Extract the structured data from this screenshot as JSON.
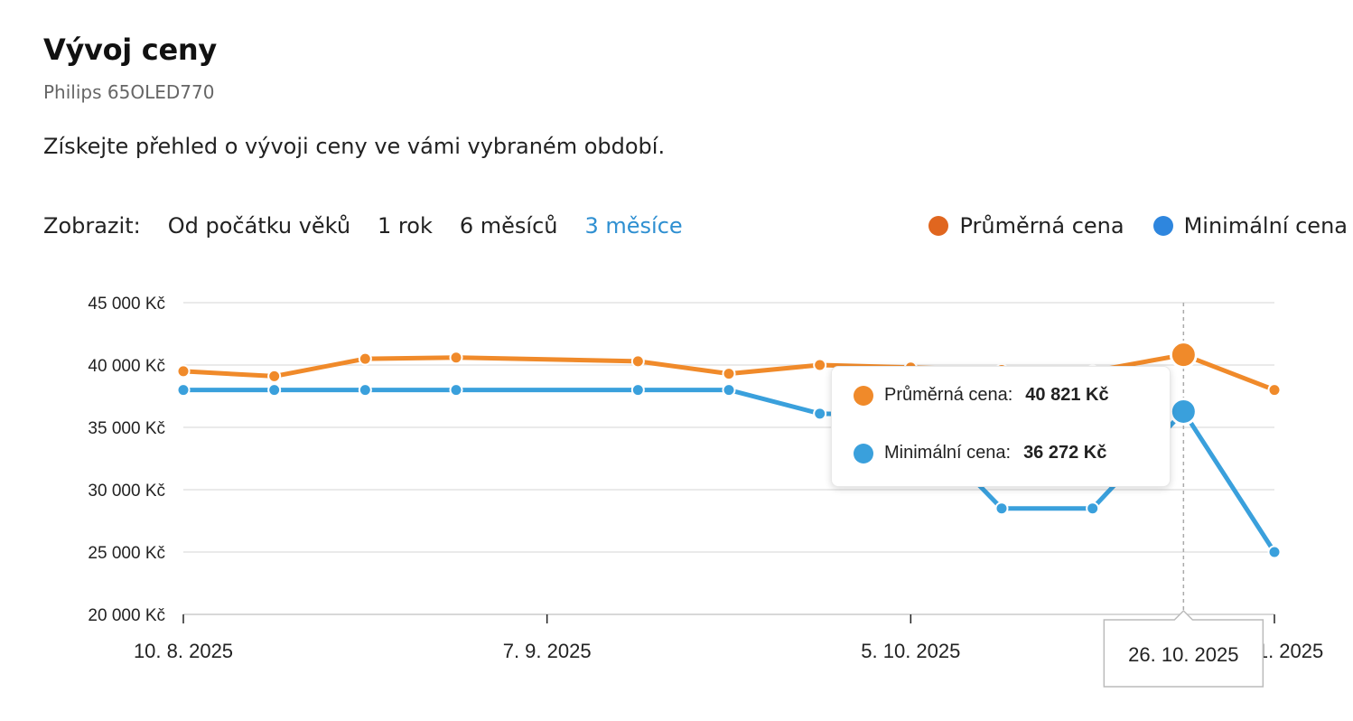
{
  "header": {
    "title": "Vývoj ceny",
    "subtitle": "Philips 65OLED770",
    "description": "Získejte přehled o vývoji ceny ve vámi vybraném období."
  },
  "filters": {
    "label": "Zobrazit:",
    "options": [
      "Od počátku věků",
      "1 rok",
      "6 měsíců",
      "3 měsíce"
    ],
    "active": "3 měsíce"
  },
  "legend": [
    {
      "label": "Průměrná cena",
      "color": "#e0661f"
    },
    {
      "label": "Minimální cena",
      "color": "#2e86de"
    }
  ],
  "tooltip": {
    "rows": [
      {
        "label": "Průměrná cena:",
        "value": "40 821 Kč",
        "color": "#f08a2a"
      },
      {
        "label": "Minimální cena:",
        "value": "36 272 Kč",
        "color": "#3aa0dc"
      }
    ],
    "date": "26. 10. 2025"
  },
  "chart_data": {
    "type": "line",
    "x_axis": {
      "type": "date",
      "min": "2025-08-10",
      "max": "2025-11-02"
    },
    "x": [
      "2025-08-10",
      "2025-08-17",
      "2025-08-24",
      "2025-08-31",
      "2025-09-14",
      "2025-09-21",
      "2025-09-28",
      "2025-10-05",
      "2025-10-12",
      "2025-10-19",
      "2025-10-26",
      "2025-11-02"
    ],
    "x_ticks": [
      {
        "date": "2025-08-10",
        "label": "10. 8. 2025"
      },
      {
        "date": "2025-09-07",
        "label": "7. 9. 2025"
      },
      {
        "date": "2025-10-05",
        "label": "5. 10. 2025"
      },
      {
        "date": "2025-11-02",
        "label": "2. 11. 2025"
      }
    ],
    "y_ticks": [
      {
        "value": 45000,
        "label": "45 000 Kč"
      },
      {
        "value": 40000,
        "label": "40 000 Kč"
      },
      {
        "value": 35000,
        "label": "35 000 Kč"
      },
      {
        "value": 30000,
        "label": "30 000 Kč"
      },
      {
        "value": 25000,
        "label": "25 000 Kč"
      },
      {
        "value": 20000,
        "label": "20 000 Kč"
      }
    ],
    "ylim": [
      20000,
      45000
    ],
    "grid": true,
    "highlight": {
      "date": "2025-10-26"
    },
    "series": [
      {
        "name": "Průměrná cena",
        "color": "#f08a2a",
        "values": [
          39500,
          39100,
          40500,
          40600,
          40300,
          39300,
          40000,
          39800,
          39600,
          39500,
          40821,
          38000
        ]
      },
      {
        "name": "Minimální cena",
        "color": "#3aa0dc",
        "values": [
          38000,
          38000,
          38000,
          38000,
          38000,
          38000,
          36100,
          36000,
          28500,
          28500,
          36272,
          25000
        ]
      }
    ]
  }
}
